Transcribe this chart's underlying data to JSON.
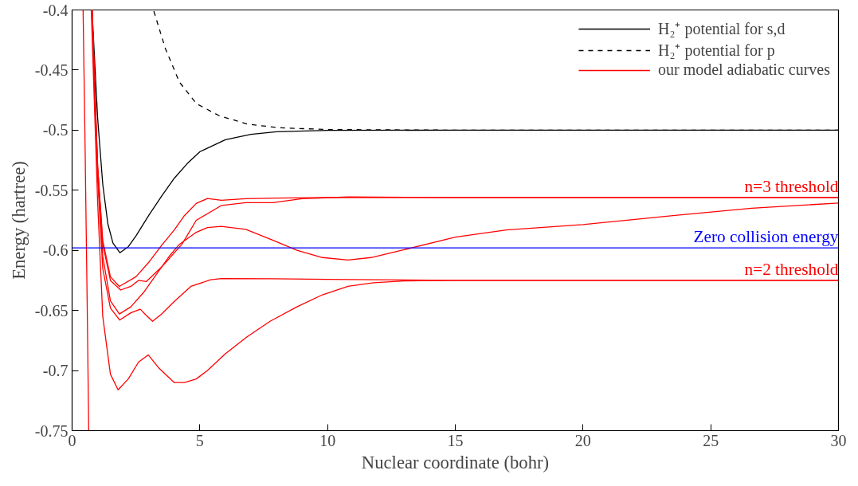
{
  "chart_data": {
    "type": "line",
    "xlabel": "Nuclear coordinate (bohr)",
    "ylabel": "Energy (hartree)",
    "xlim": [
      0,
      30
    ],
    "ylim": [
      -0.75,
      -0.4
    ],
    "xticks": [
      0,
      5,
      10,
      15,
      20,
      25,
      30
    ],
    "yticks": [
      -0.75,
      -0.7,
      -0.65,
      -0.6,
      -0.55,
      -0.5,
      -0.45,
      -0.4
    ],
    "grid": false,
    "legend": "top right",
    "marker": "none",
    "series": [
      {
        "name": "H₂⁺ potential for s,d",
        "color": "#000000",
        "line_style": "solid",
        "x": [
          0.78,
          1.0,
          1.2,
          1.4,
          1.6,
          1.87,
          2.2,
          2.5,
          3,
          3.5,
          4,
          4.5,
          5,
          6,
          7,
          8,
          10,
          15,
          30
        ],
        "values": [
          -0.4,
          -0.49,
          -0.545,
          -0.578,
          -0.594,
          -0.602,
          -0.597,
          -0.588,
          -0.571,
          -0.555,
          -0.54,
          -0.528,
          -0.518,
          -0.508,
          -0.5035,
          -0.5013,
          -0.5002,
          -0.5,
          -0.5
        ]
      },
      {
        "name": "H₂⁺ potential for p",
        "color": "#000000",
        "line_style": "dashed",
        "x": [
          3.2,
          3.65,
          4.2,
          4.87,
          5.76,
          6.87,
          8.1,
          10,
          15,
          30
        ],
        "values": [
          -0.401,
          -0.432,
          -0.46,
          -0.478,
          -0.488,
          -0.495,
          -0.498,
          -0.4995,
          -0.5,
          -0.5
        ]
      },
      {
        "name": "our model adiabatic curves",
        "color": "#ff0000",
        "line_style": "solid",
        "x": [
          0.75,
          1.0,
          1.2,
          1.5,
          1.8,
          2.2,
          2.6,
          2.98,
          3.4,
          4.0,
          4.4,
          4.86,
          5.3,
          6.0,
          6.85,
          7.75,
          8.8,
          9.8,
          10.8,
          11.8,
          13,
          15,
          20,
          30
        ],
        "values": [
          -0.4,
          -0.56,
          -0.655,
          -0.703,
          -0.716,
          -0.707,
          -0.693,
          -0.687,
          -0.698,
          -0.71,
          -0.71,
          -0.707,
          -0.7,
          -0.686,
          -0.672,
          -0.659,
          -0.647,
          -0.637,
          -0.63,
          -0.627,
          -0.6255,
          -0.625,
          -0.625,
          -0.625
        ]
      },
      {
        "color": "#ff0000",
        "line_style": "solid",
        "x": [
          0.78,
          1.0,
          1.2,
          1.5,
          1.86,
          2.3,
          2.67,
          2.9,
          3.15,
          3.5,
          3.98,
          4.65,
          5.42,
          5.85,
          7.85,
          10,
          15,
          30
        ],
        "values": [
          -0.4,
          -0.54,
          -0.615,
          -0.648,
          -0.658,
          -0.652,
          -0.649,
          -0.654,
          -0.659,
          -0.653,
          -0.643,
          -0.63,
          -0.6245,
          -0.6235,
          -0.6237,
          -0.6242,
          -0.625,
          -0.625
        ]
      },
      {
        "color": "#ff0000",
        "line_style": "solid",
        "x": [
          0.78,
          1.0,
          1.2,
          1.5,
          1.85,
          2.3,
          2.8,
          3.3,
          3.8,
          4.2,
          4.86,
          5.3,
          5.84,
          6.8,
          7.85,
          8.8,
          9.8,
          10.8,
          11.7,
          12.9,
          15,
          17,
          20,
          23.6,
          26.6,
          30
        ],
        "values": [
          -0.4,
          -0.535,
          -0.605,
          -0.642,
          -0.653,
          -0.647,
          -0.635,
          -0.62,
          -0.605,
          -0.595,
          -0.585,
          -0.581,
          -0.58,
          -0.5826,
          -0.5915,
          -0.6,
          -0.606,
          -0.608,
          -0.606,
          -0.6,
          -0.589,
          -0.583,
          -0.5785,
          -0.571,
          -0.565,
          -0.5606
        ]
      },
      {
        "color": "#ff0000",
        "line_style": "solid",
        "x": [
          0.78,
          1.0,
          1.2,
          1.5,
          1.85,
          2.5,
          3.0,
          3.5,
          4.0,
          4.4,
          4.86,
          5.3,
          5.84,
          6.8,
          8,
          10,
          15,
          30
        ],
        "values": [
          -0.4,
          -0.53,
          -0.592,
          -0.622,
          -0.63,
          -0.622,
          -0.61,
          -0.596,
          -0.583,
          -0.571,
          -0.561,
          -0.5568,
          -0.5583,
          -0.557,
          -0.5565,
          -0.556,
          -0.556,
          -0.556
        ]
      },
      {
        "color": "#ff0000",
        "line_style": "solid",
        "x": [
          0.78,
          1.0,
          1.2,
          1.5,
          1.9,
          2.3,
          2.6,
          2.9,
          3.5,
          4.3,
          4.86,
          5.84,
          6.8,
          7.85,
          9,
          10.8,
          15,
          30
        ],
        "values": [
          -0.4,
          -0.53,
          -0.595,
          -0.625,
          -0.633,
          -0.63,
          -0.625,
          -0.626,
          -0.614,
          -0.595,
          -0.575,
          -0.5627,
          -0.5604,
          -0.5604,
          -0.557,
          -0.5556,
          -0.556,
          -0.556
        ]
      },
      {
        "color": "#ff0000",
        "line_style": "solid",
        "x": [
          0.43,
          0.5,
          0.55,
          0.6,
          0.65
        ],
        "values": [
          -0.4,
          -0.5,
          -0.58,
          -0.66,
          -0.75
        ]
      }
    ],
    "ref_lines": [
      {
        "axis": "y",
        "value": -0.598,
        "label": "Zero collision energy",
        "color": "#0000ff"
      }
    ],
    "annotations": [
      {
        "text": "n=3 threshold",
        "x": 30,
        "y": -0.556
      },
      {
        "text": "n=2 threshold",
        "x": 30,
        "y": -0.625
      }
    ]
  }
}
